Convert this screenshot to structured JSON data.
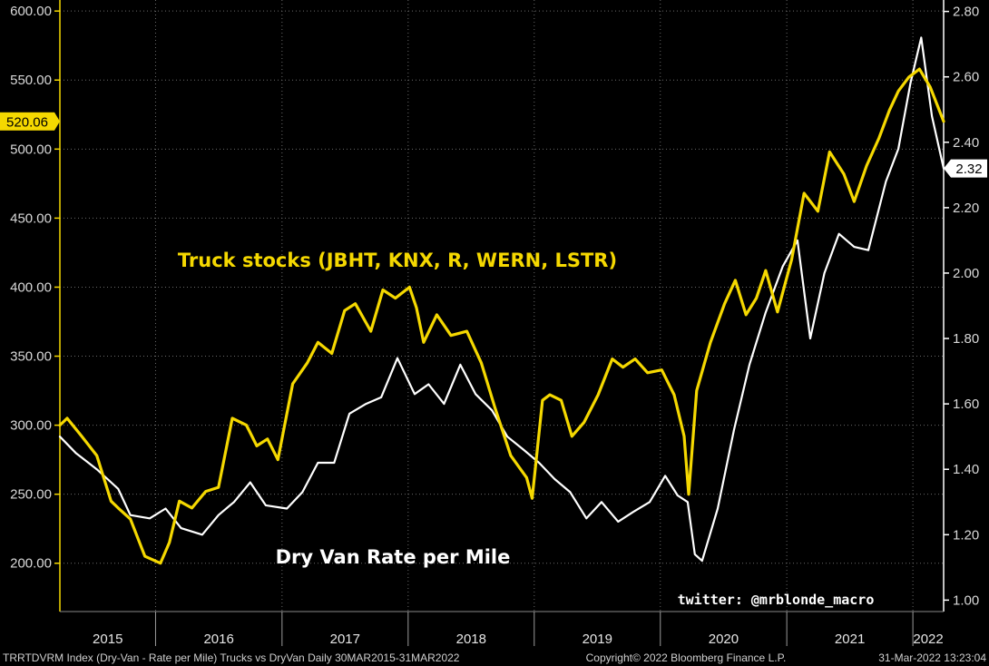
{
  "chart_data": {
    "type": "line",
    "x_range": [
      "2015-03-30",
      "2022-03-31"
    ],
    "years": [
      "2015",
      "2016",
      "2017",
      "2018",
      "2019",
      "2020",
      "2021",
      "2022"
    ],
    "left_axis": {
      "ticks": [
        "200.00",
        "250.00",
        "300.00",
        "350.00",
        "400.00",
        "450.00",
        "500.00",
        "550.00",
        "600.00"
      ],
      "ylim": [
        165,
        608
      ],
      "color": "#f5d800"
    },
    "right_axis": {
      "ticks": [
        "1.00",
        "1.20",
        "1.40",
        "1.60",
        "1.80",
        "2.00",
        "2.20",
        "2.40",
        "2.60",
        "2.80"
      ],
      "ylim": [
        0.965,
        2.835
      ],
      "color": "#ffffff"
    },
    "series": [
      {
        "name": "Truck stocks (JBHT, KNX, R, WERN, LSTR)",
        "axis": "left",
        "color": "#f5d800",
        "last_value": "520.06",
        "x": [
          "2015-03-30",
          "2015-04-20",
          "2015-06-01",
          "2015-07-15",
          "2015-08-25",
          "2015-09-15",
          "2015-10-20",
          "2015-12-01",
          "2016-01-15",
          "2016-02-10",
          "2016-03-10",
          "2016-04-15",
          "2016-05-25",
          "2016-07-01",
          "2016-08-10",
          "2016-09-20",
          "2016-10-20",
          "2016-11-20",
          "2016-12-20",
          "2017-02-01",
          "2017-03-15",
          "2017-04-15",
          "2017-05-25",
          "2017-07-01",
          "2017-08-01",
          "2017-09-15",
          "2017-10-20",
          "2017-11-25",
          "2018-01-05",
          "2018-01-25",
          "2018-02-15",
          "2018-03-25",
          "2018-05-05",
          "2018-06-20",
          "2018-08-01",
          "2018-09-10",
          "2018-10-25",
          "2018-12-10",
          "2018-12-26",
          "2019-01-25",
          "2019-02-15",
          "2019-03-20",
          "2019-04-20",
          "2019-05-25",
          "2019-07-05",
          "2019-08-15",
          "2019-09-15",
          "2019-10-20",
          "2019-11-25",
          "2020-01-05",
          "2020-02-10",
          "2020-03-10",
          "2020-03-23",
          "2020-04-15",
          "2020-05-25",
          "2020-07-05",
          "2020-08-05",
          "2020-09-05",
          "2020-10-05",
          "2020-11-01",
          "2020-12-05",
          "2021-01-15",
          "2021-02-20",
          "2021-04-01",
          "2021-05-05",
          "2021-06-15",
          "2021-07-15",
          "2021-08-20",
          "2021-09-25",
          "2021-10-25",
          "2021-11-20",
          "2021-12-20",
          "2022-01-20",
          "2022-02-20",
          "2022-03-31"
        ],
        "values": [
          300,
          305,
          292,
          278,
          245,
          240,
          232,
          205,
          200,
          215,
          245,
          240,
          252,
          255,
          305,
          300,
          285,
          290,
          275,
          330,
          345,
          360,
          352,
          383,
          388,
          368,
          398,
          392,
          400,
          385,
          360,
          380,
          365,
          368,
          345,
          312,
          278,
          262,
          247,
          318,
          322,
          318,
          292,
          302,
          322,
          348,
          342,
          348,
          338,
          340,
          322,
          292,
          250,
          325,
          360,
          388,
          405,
          380,
          392,
          412,
          382,
          420,
          468,
          455,
          498,
          482,
          462,
          488,
          508,
          528,
          542,
          552,
          558,
          545,
          520.06
        ]
      },
      {
        "name": "Dry Van Rate per Mile",
        "axis": "right",
        "color": "#ffffff",
        "last_value": "2.32",
        "x": [
          "2015-03-30",
          "2015-05-15",
          "2015-07-15",
          "2015-09-15",
          "2015-10-20",
          "2015-12-15",
          "2016-01-30",
          "2016-03-15",
          "2016-05-15",
          "2016-07-01",
          "2016-08-15",
          "2016-10-01",
          "2016-11-15",
          "2017-01-15",
          "2017-03-01",
          "2017-04-15",
          "2017-06-01",
          "2017-07-15",
          "2017-09-01",
          "2017-10-15",
          "2017-12-01",
          "2018-01-20",
          "2018-03-01",
          "2018-04-15",
          "2018-06-01",
          "2018-07-15",
          "2018-09-01",
          "2018-10-15",
          "2018-12-01",
          "2019-01-15",
          "2019-03-01",
          "2019-04-15",
          "2019-06-01",
          "2019-07-15",
          "2019-09-01",
          "2019-10-15",
          "2019-12-01",
          "2020-01-15",
          "2020-02-20",
          "2020-03-20",
          "2020-04-10",
          "2020-05-01",
          "2020-06-15",
          "2020-08-01",
          "2020-09-15",
          "2020-11-01",
          "2020-12-20",
          "2021-02-01",
          "2021-03-10",
          "2021-04-20",
          "2021-06-01",
          "2021-07-15",
          "2021-08-25",
          "2021-10-15",
          "2021-11-20",
          "2021-12-25",
          "2022-01-25",
          "2022-02-25",
          "2022-03-31"
        ],
        "values": [
          1.5,
          1.45,
          1.4,
          1.34,
          1.26,
          1.25,
          1.28,
          1.22,
          1.2,
          1.26,
          1.3,
          1.36,
          1.29,
          1.28,
          1.33,
          1.42,
          1.42,
          1.57,
          1.6,
          1.62,
          1.74,
          1.63,
          1.66,
          1.6,
          1.72,
          1.63,
          1.58,
          1.5,
          1.46,
          1.42,
          1.37,
          1.33,
          1.25,
          1.3,
          1.24,
          1.27,
          1.3,
          1.38,
          1.32,
          1.3,
          1.14,
          1.12,
          1.28,
          1.52,
          1.72,
          1.88,
          2.02,
          2.1,
          1.8,
          2.0,
          2.12,
          2.08,
          2.07,
          2.28,
          2.38,
          2.58,
          2.72,
          2.48,
          2.32
        ]
      }
    ],
    "annotations": {
      "stocks_label": "Truck stocks (JBHT, KNX, R, WERN, LSTR)",
      "van_label": "Dry Van Rate per Mile",
      "credit": "twitter: @mrblonde_macro"
    },
    "footer": {
      "left": "TRRTDVRM Index (Dry-Van - Rate per Mile) Trucks vs DryVan  Daily 30MAR2015-31MAR2022",
      "center": "Copyright© 2022 Bloomberg Finance L.P.",
      "right": "31-Mar-2022 13:23:04"
    },
    "grid": "dotted horizontal and vertical",
    "background": "#000000"
  }
}
